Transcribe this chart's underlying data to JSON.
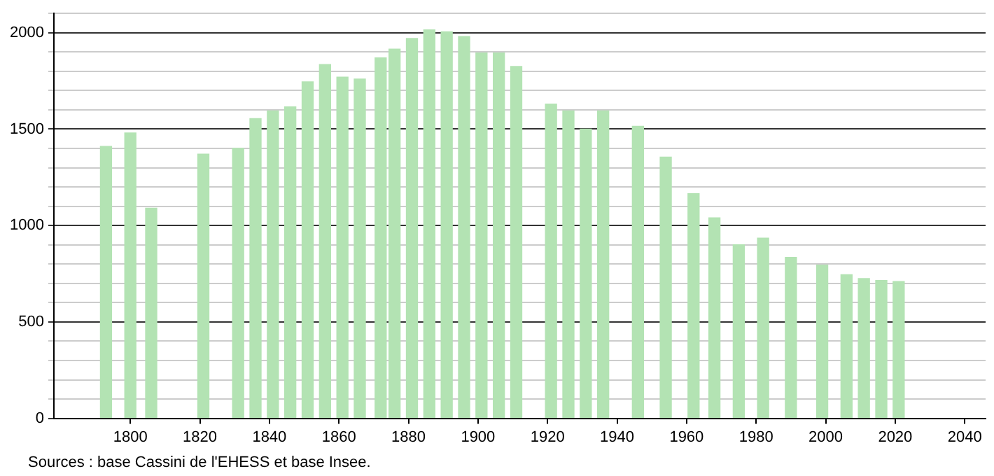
{
  "chart_data": {
    "type": "bar",
    "x": [
      1793,
      1800,
      1806,
      1821,
      1831,
      1836,
      1841,
      1846,
      1851,
      1856,
      1861,
      1866,
      1872,
      1876,
      1881,
      1886,
      1891,
      1896,
      1901,
      1906,
      1911,
      1921,
      1926,
      1931,
      1936,
      1946,
      1954,
      1962,
      1968,
      1975,
      1982,
      1990,
      1999,
      2006,
      2011,
      2016,
      2021
    ],
    "values": [
      1410,
      1480,
      1090,
      1370,
      1400,
      1555,
      1595,
      1615,
      1745,
      1835,
      1770,
      1760,
      1870,
      1915,
      1970,
      2015,
      2005,
      1980,
      1895,
      1895,
      1825,
      1630,
      1595,
      1500,
      1595,
      1515,
      1355,
      1165,
      1040,
      900,
      935,
      835,
      795,
      745,
      725,
      715,
      710
    ],
    "color": "#b3e3b3",
    "xlim": [
      1778,
      2046
    ],
    "xticks": [
      1800,
      1820,
      1840,
      1860,
      1880,
      1900,
      1920,
      1940,
      1960,
      1980,
      2000,
      2020,
      2040
    ],
    "ylim": [
      0,
      2100
    ],
    "yticks": [
      0,
      {
        "value": 100,
        "label": null
      },
      {
        "value": 200,
        "label": null
      },
      {
        "value": 300,
        "label": null
      },
      {
        "value": 400,
        "label": null
      },
      500,
      {
        "value": 600,
        "label": null
      },
      {
        "value": 700,
        "label": null
      },
      {
        "value": 800,
        "label": null
      },
      {
        "value": 900,
        "label": null
      },
      1000,
      {
        "value": 1100,
        "label": null
      },
      {
        "value": 1200,
        "label": null
      },
      {
        "value": 1300,
        "label": null
      },
      {
        "value": 1400,
        "label": null
      },
      1500,
      {
        "value": 1600,
        "label": null
      },
      {
        "value": 1700,
        "label": null
      },
      {
        "value": 1800,
        "label": null
      },
      {
        "value": 1900,
        "label": null
      },
      2000,
      {
        "value": 2100,
        "label": null
      }
    ],
    "grid": "y",
    "annotations": [
      "Sources : base Cassini de l'EHESS et base Insee."
    ]
  }
}
